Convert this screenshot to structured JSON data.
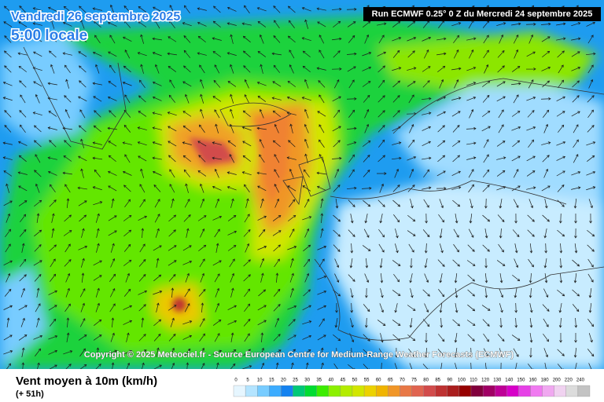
{
  "map": {
    "title": "Vendredi 26 septembre 2025",
    "time": "5:00 locale",
    "run": "Run ECMWF 0.25° 0 Z du Mercredi 24 septembre 2025",
    "copyright": "Copyright © 2025 Meteociel.fr - Source European Centre for Medium-Range Weather Forecasts (ECMWF)"
  },
  "footer": {
    "variable": "Vent moyen à 10m (km/h)",
    "lead": "(+ 51h)"
  },
  "legend": {
    "labels": [
      0,
      5,
      10,
      15,
      20,
      25,
      30,
      35,
      40,
      45,
      50,
      55,
      60,
      65,
      70,
      75,
      80,
      85,
      90,
      100,
      110,
      120,
      130,
      140,
      150,
      160,
      180,
      200,
      220,
      240
    ],
    "colors": [
      "#e6f6ff",
      "#b4e4ff",
      "#78ccff",
      "#3cacff",
      "#1482f0",
      "#00c878",
      "#00dc32",
      "#3cec00",
      "#8cf000",
      "#b4ec00",
      "#d2e600",
      "#ecd200",
      "#f0b400",
      "#f09628",
      "#e87846",
      "#e06450",
      "#d24b4b",
      "#be3232",
      "#aa1e1e",
      "#960000",
      "#82003c",
      "#a00064",
      "#be0096",
      "#d700c8",
      "#e641e6",
      "#f07af0",
      "#f0a8f0",
      "#f0d2f0",
      "#dcdcdc",
      "#c3c3c3"
    ]
  }
}
